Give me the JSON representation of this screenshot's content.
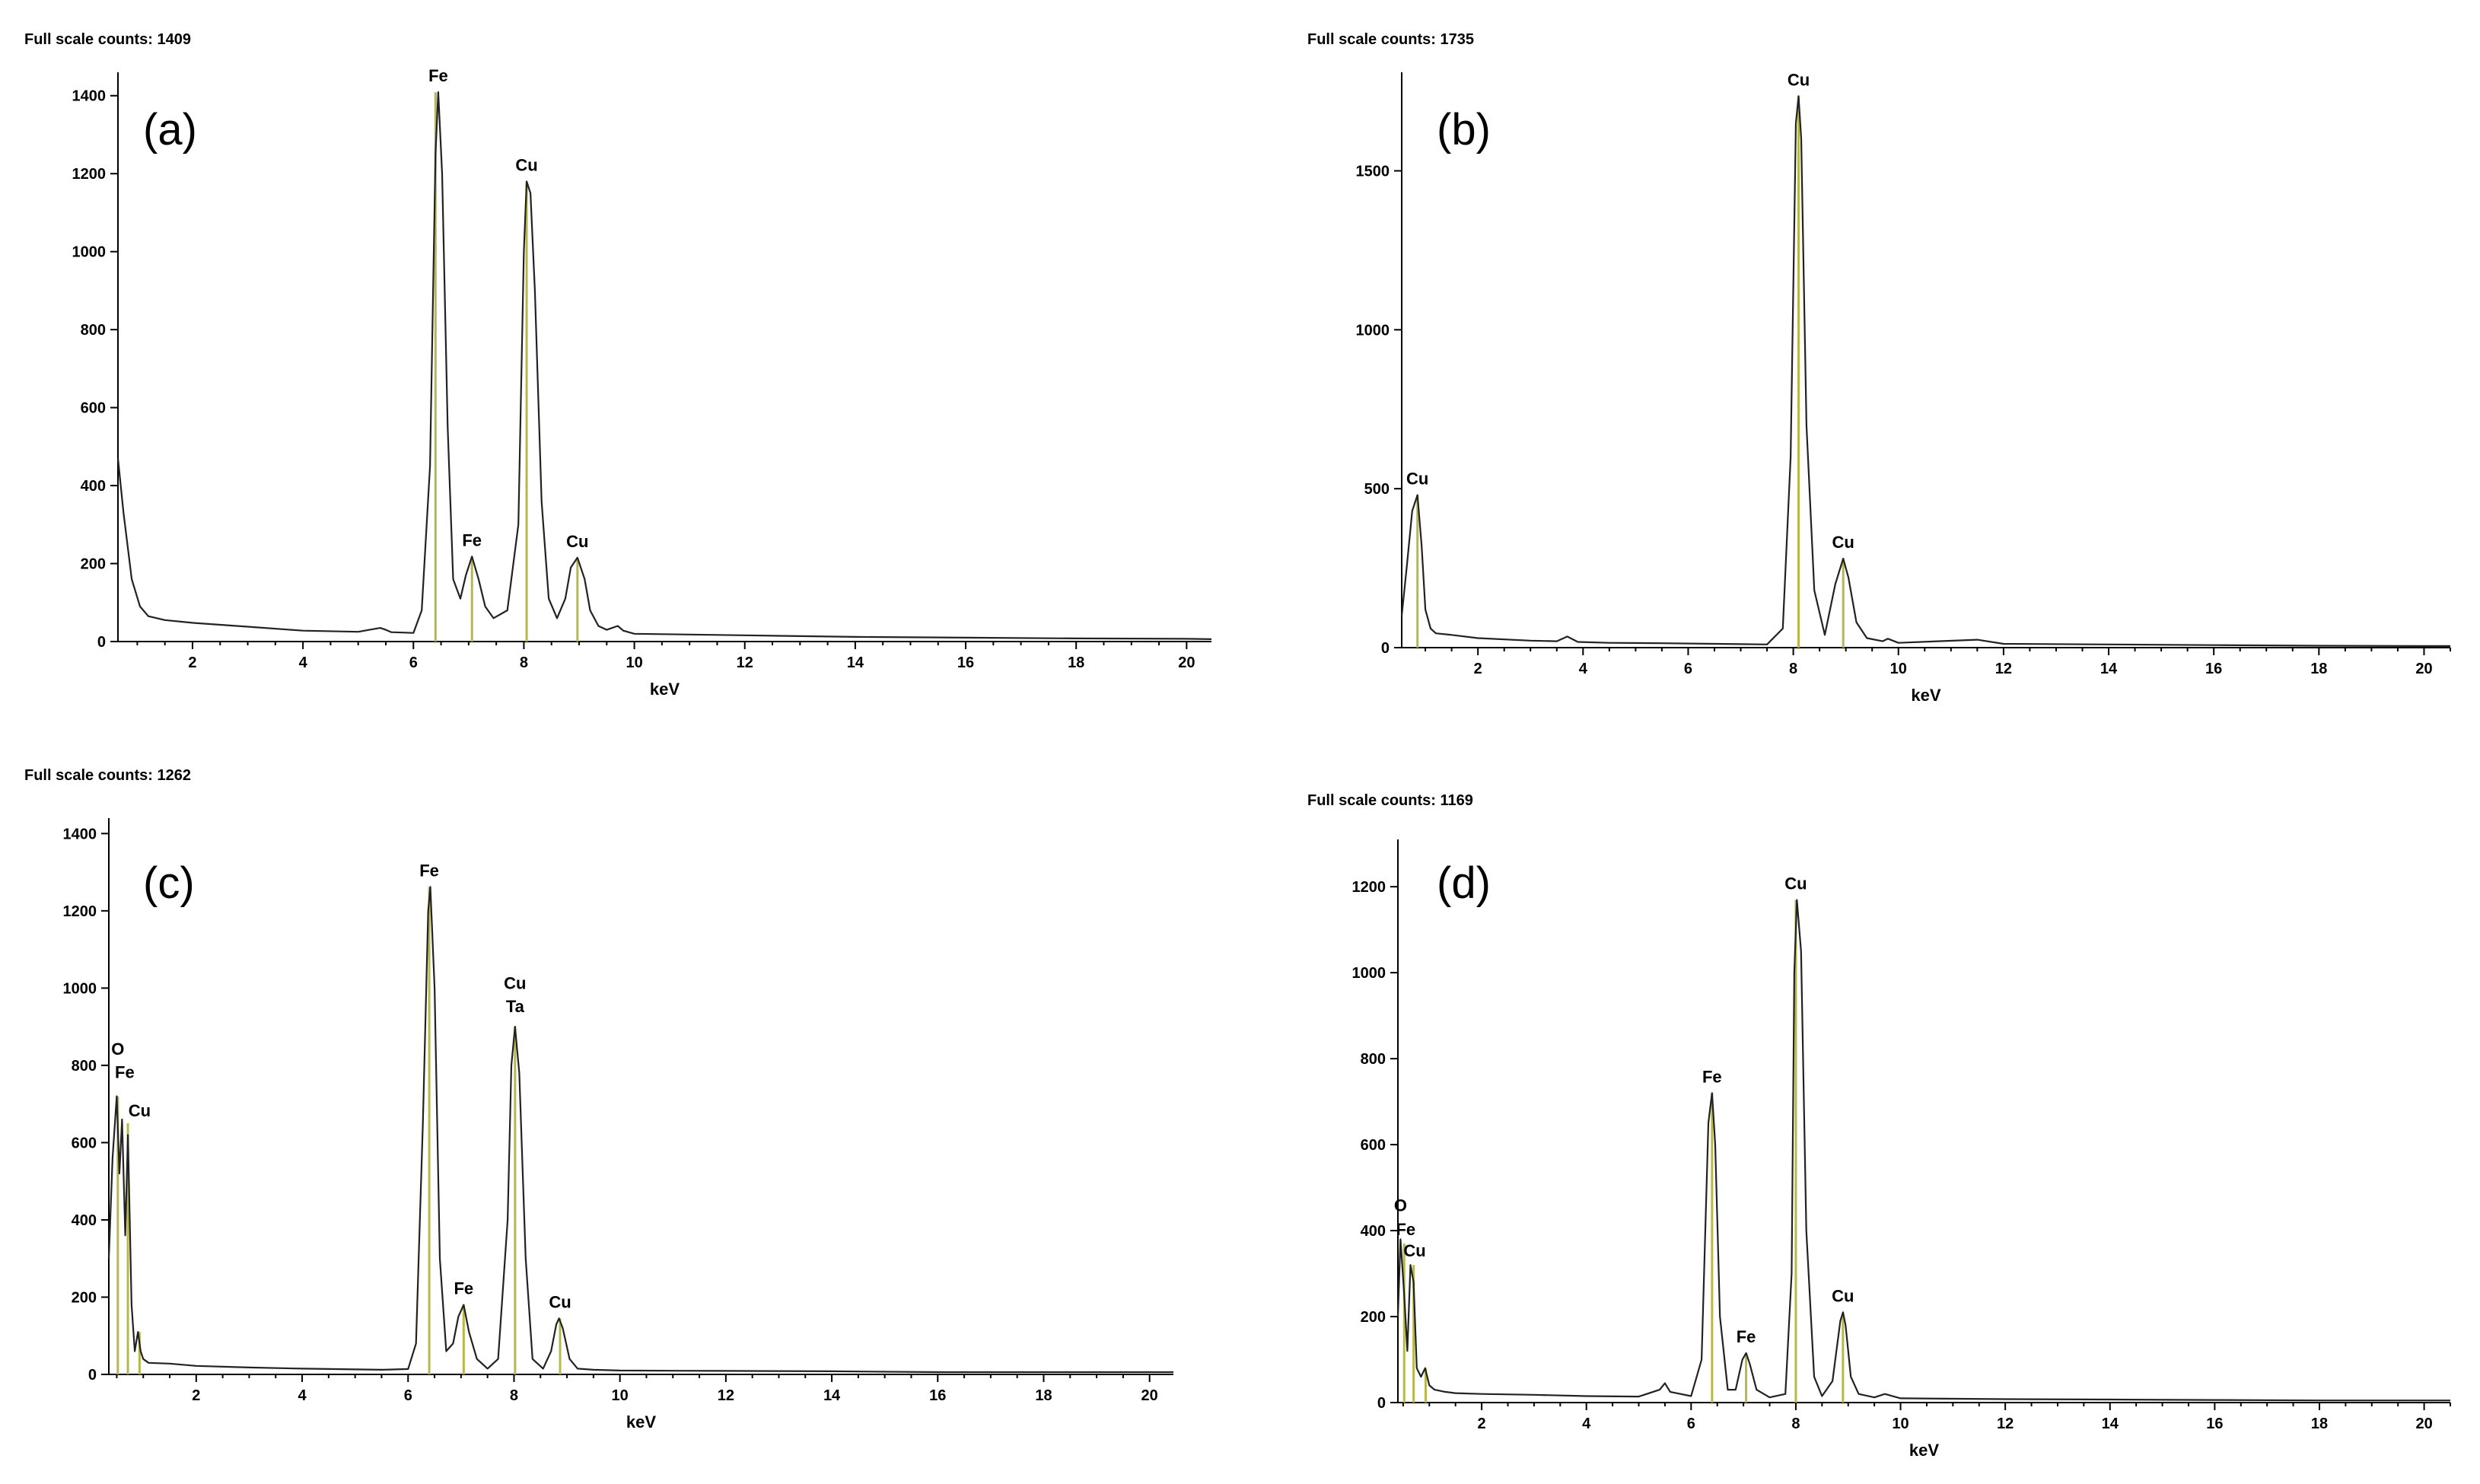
{
  "chart_data": [
    {
      "type": "line",
      "panel_label": "(a)",
      "full_scale_text": "Full scale counts: 1409",
      "xlabel": "keV",
      "xlim": [
        0.65,
        20.45
      ],
      "ylim": [
        0,
        1460
      ],
      "xticks": [
        2,
        4,
        6,
        8,
        10,
        12,
        14,
        16,
        18,
        20
      ],
      "yticks": [
        0,
        200,
        400,
        600,
        800,
        1000,
        1200,
        1400
      ],
      "series": [
        {
          "x": [
            0.65,
            0.75,
            0.9,
            1.05,
            1.2,
            1.5,
            2.0,
            3.0,
            4.0,
            5.0,
            5.4,
            5.5,
            5.6,
            6.0,
            6.15,
            6.3,
            6.4,
            6.45,
            6.52,
            6.62,
            6.72,
            6.85,
            6.95,
            7.06,
            7.18,
            7.3,
            7.45,
            7.7,
            7.9,
            8.0,
            8.05,
            8.12,
            8.2,
            8.32,
            8.45,
            8.6,
            8.75,
            8.85,
            8.97,
            9.1,
            9.2,
            9.35,
            9.5,
            9.7,
            9.8,
            10.0,
            12.0,
            14.0,
            16.0,
            18.0,
            20.0,
            20.45
          ],
          "y": [
            470,
            330,
            160,
            90,
            65,
            55,
            48,
            38,
            28,
            25,
            35,
            30,
            24,
            22,
            80,
            450,
            1250,
            1409,
            1200,
            550,
            160,
            110,
            170,
            218,
            160,
            90,
            60,
            80,
            300,
            1000,
            1180,
            1150,
            900,
            360,
            110,
            60,
            110,
            190,
            215,
            160,
            80,
            40,
            30,
            40,
            28,
            20,
            16,
            12,
            10,
            8,
            7,
            6
          ]
        }
      ],
      "peak_labels": [
        {
          "text": "Fe",
          "x": 6.45,
          "y": 1409
        },
        {
          "text": "Fe",
          "x": 7.06,
          "y": 218
        },
        {
          "text": "Cu",
          "x": 8.05,
          "y": 1180
        },
        {
          "text": "Cu",
          "x": 8.97,
          "y": 215
        }
      ],
      "marker_lines": [
        {
          "x": 6.4,
          "y": 1409
        },
        {
          "x": 7.06,
          "y": 218
        },
        {
          "x": 8.05,
          "y": 1180
        },
        {
          "x": 8.97,
          "y": 215
        }
      ],
      "marker_color": "#b8b84a"
    },
    {
      "type": "line",
      "panel_label": "(b)",
      "full_scale_text": "Full scale counts: 1735",
      "xlabel": "keV",
      "xlim": [
        0.55,
        20.5
      ],
      "ylim": [
        0,
        1810
      ],
      "xticks": [
        2,
        4,
        6,
        8,
        10,
        12,
        14,
        16,
        18,
        20
      ],
      "yticks": [
        0,
        500,
        1000,
        1500
      ],
      "series": [
        {
          "x": [
            0.55,
            0.65,
            0.75,
            0.85,
            0.93,
            1.0,
            1.1,
            1.2,
            1.5,
            2.0,
            3.0,
            3.5,
            3.7,
            3.9,
            4.5,
            5.5,
            6.5,
            7.5,
            7.8,
            7.95,
            8.05,
            8.1,
            8.15,
            8.25,
            8.4,
            8.6,
            8.8,
            8.95,
            9.05,
            9.2,
            9.4,
            9.7,
            9.8,
            10.0,
            11.5,
            12.0,
            14.0,
            16.0,
            18.0,
            20.0,
            20.5
          ],
          "y": [
            100,
            260,
            430,
            480,
            320,
            120,
            60,
            45,
            40,
            30,
            22,
            20,
            35,
            18,
            15,
            14,
            12,
            10,
            60,
            600,
            1650,
            1735,
            1600,
            700,
            180,
            40,
            200,
            280,
            220,
            80,
            30,
            20,
            28,
            15,
            25,
            12,
            10,
            8,
            6,
            5,
            5
          ]
        }
      ],
      "peak_labels": [
        {
          "text": "Cu",
          "x": 0.85,
          "y": 480
        },
        {
          "text": "Cu",
          "x": 8.1,
          "y": 1735
        },
        {
          "text": "Cu",
          "x": 8.95,
          "y": 280
        }
      ],
      "marker_lines": [
        {
          "x": 0.85,
          "y": 480
        },
        {
          "x": 8.1,
          "y": 1735
        },
        {
          "x": 8.95,
          "y": 280
        }
      ],
      "marker_color": "#b8b84a"
    },
    {
      "type": "line",
      "panel_label": "(c)",
      "full_scale_text": "Full scale counts: 1262",
      "xlabel": "keV",
      "xlim": [
        0.35,
        20.45
      ],
      "ylim": [
        0,
        1440
      ],
      "xticks": [
        2,
        4,
        6,
        8,
        10,
        12,
        14,
        16,
        18,
        20
      ],
      "yticks": [
        0,
        200,
        400,
        600,
        800,
        1000,
        1200,
        1400
      ],
      "series": [
        {
          "x": [
            0.35,
            0.42,
            0.5,
            0.55,
            0.6,
            0.66,
            0.71,
            0.78,
            0.84,
            0.9,
            0.95,
            1.0,
            1.1,
            1.5,
            2.0,
            3.0,
            4.0,
            5.0,
            5.5,
            6.0,
            6.15,
            6.28,
            6.38,
            6.42,
            6.5,
            6.6,
            6.72,
            6.85,
            6.95,
            7.05,
            7.15,
            7.3,
            7.5,
            7.7,
            7.88,
            7.95,
            8.02,
            8.1,
            8.22,
            8.35,
            8.55,
            8.7,
            8.8,
            8.85,
            8.92,
            9.05,
            9.2,
            9.5,
            10.0,
            12.0,
            14.0,
            16.0,
            18.0,
            20.0,
            20.45
          ],
          "y": [
            300,
            560,
            720,
            520,
            660,
            360,
            620,
            180,
            60,
            110,
            60,
            40,
            30,
            28,
            22,
            18,
            15,
            13,
            12,
            14,
            80,
            650,
            1200,
            1262,
            1000,
            300,
            60,
            80,
            150,
            180,
            110,
            40,
            15,
            40,
            400,
            800,
            900,
            780,
            300,
            40,
            15,
            60,
            130,
            145,
            120,
            40,
            15,
            12,
            10,
            9,
            8,
            6,
            6,
            6,
            6
          ]
        }
      ],
      "peak_labels": [
        {
          "text": "O",
          "x": 0.52,
          "y": 800
        },
        {
          "text": "Fe",
          "x": 0.65,
          "y": 740
        },
        {
          "text": "Cu",
          "x": 0.93,
          "y": 640
        },
        {
          "text": "Fe",
          "x": 6.4,
          "y": 1262
        },
        {
          "text": "Fe",
          "x": 7.05,
          "y": 180
        },
        {
          "text": "Cu",
          "x": 8.02,
          "y": 970
        },
        {
          "text": "Ta",
          "x": 8.02,
          "y": 910
        },
        {
          "text": "Cu",
          "x": 8.87,
          "y": 145
        }
      ],
      "marker_lines": [
        {
          "x": 0.52,
          "y": 720
        },
        {
          "x": 0.71,
          "y": 650
        },
        {
          "x": 0.93,
          "y": 110
        },
        {
          "x": 6.4,
          "y": 1262
        },
        {
          "x": 7.05,
          "y": 180
        },
        {
          "x": 8.02,
          "y": 900
        },
        {
          "x": 8.87,
          "y": 145
        }
      ],
      "marker_color": "#b8b84a"
    },
    {
      "type": "line",
      "panel_label": "(d)",
      "full_scale_text": "Full scale counts: 1169",
      "xlabel": "keV",
      "xlim": [
        0.4,
        20.5
      ],
      "ylim": [
        0,
        1310
      ],
      "xticks": [
        2,
        4,
        6,
        8,
        10,
        12,
        14,
        16,
        18,
        20
      ],
      "yticks": [
        0,
        200,
        400,
        600,
        800,
        1000,
        1200
      ],
      "series": [
        {
          "x": [
            0.4,
            0.45,
            0.52,
            0.58,
            0.64,
            0.7,
            0.76,
            0.84,
            0.92,
            1.0,
            1.1,
            1.3,
            1.5,
            2.0,
            3.0,
            4.0,
            5.0,
            5.4,
            5.5,
            5.6,
            6.0,
            6.2,
            6.33,
            6.4,
            6.46,
            6.55,
            6.7,
            6.85,
            6.98,
            7.05,
            7.12,
            7.25,
            7.5,
            7.8,
            7.92,
            7.97,
            8.02,
            8.1,
            8.2,
            8.35,
            8.5,
            8.7,
            8.85,
            8.9,
            8.95,
            9.05,
            9.2,
            9.5,
            9.7,
            10.0,
            12.0,
            14.0,
            16.0,
            18.0,
            20.0,
            20.5
          ],
          "y": [
            200,
            380,
            250,
            120,
            320,
            280,
            80,
            60,
            80,
            40,
            30,
            25,
            22,
            20,
            18,
            15,
            14,
            30,
            45,
            25,
            15,
            100,
            650,
            720,
            600,
            200,
            30,
            30,
            100,
            115,
            90,
            30,
            12,
            20,
            300,
            1000,
            1169,
            1050,
            400,
            60,
            15,
            50,
            190,
            210,
            180,
            60,
            20,
            12,
            20,
            10,
            8,
            7,
            6,
            5,
            5,
            5
          ]
        }
      ],
      "peak_labels": [
        {
          "text": "O",
          "x": 0.45,
          "y": 420
        },
        {
          "text": "Fe",
          "x": 0.55,
          "y": 365
        },
        {
          "text": "Cu",
          "x": 0.72,
          "y": 315
        },
        {
          "text": "Fe",
          "x": 6.4,
          "y": 720
        },
        {
          "text": "Fe",
          "x": 7.05,
          "y": 115
        },
        {
          "text": "Cu",
          "x": 8.0,
          "y": 1169
        },
        {
          "text": "Cu",
          "x": 8.9,
          "y": 210
        }
      ],
      "marker_lines": [
        {
          "x": 0.52,
          "y": 370
        },
        {
          "x": 0.7,
          "y": 320
        },
        {
          "x": 0.93,
          "y": 80
        },
        {
          "x": 6.4,
          "y": 720
        },
        {
          "x": 7.05,
          "y": 115
        },
        {
          "x": 8.0,
          "y": 1169
        },
        {
          "x": 8.9,
          "y": 210
        }
      ],
      "marker_color": "#b8b84a"
    }
  ]
}
